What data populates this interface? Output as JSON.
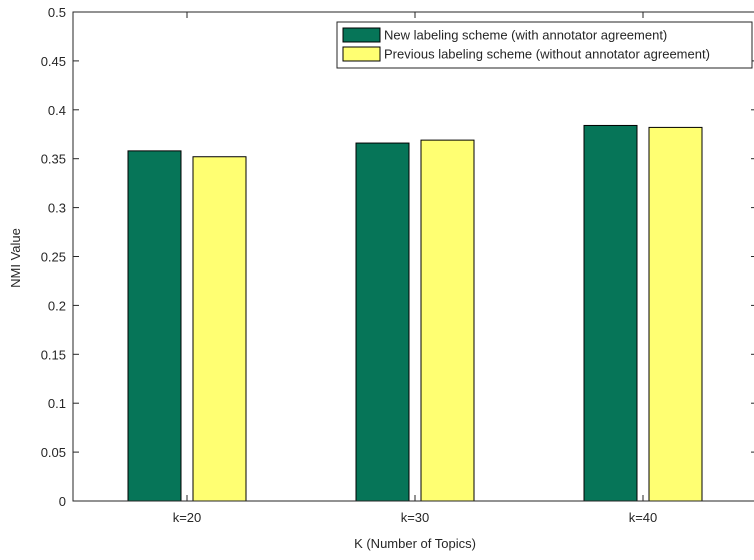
{
  "chart_data": {
    "type": "bar",
    "title": "",
    "xlabel": "K (Number of Topics)",
    "ylabel": "NMI Value",
    "categories": [
      "k=20",
      "k=30",
      "k=40"
    ],
    "series": [
      {
        "name": "New labeling scheme (with annotator agreement)",
        "color": "#067558",
        "values": [
          0.358,
          0.366,
          0.384
        ]
      },
      {
        "name": "Previous labeling scheme (without annotator agreement)",
        "color": "#FFFF72",
        "values": [
          0.352,
          0.369,
          0.382
        ]
      }
    ],
    "ylim": [
      0,
      0.5
    ],
    "yticks": [
      "0",
      "0.05",
      "0.1",
      "0.15",
      "0.2",
      "0.25",
      "0.3",
      "0.35",
      "0.4",
      "0.45",
      "0.5"
    ],
    "grid": false,
    "legend_position": "top-right"
  }
}
